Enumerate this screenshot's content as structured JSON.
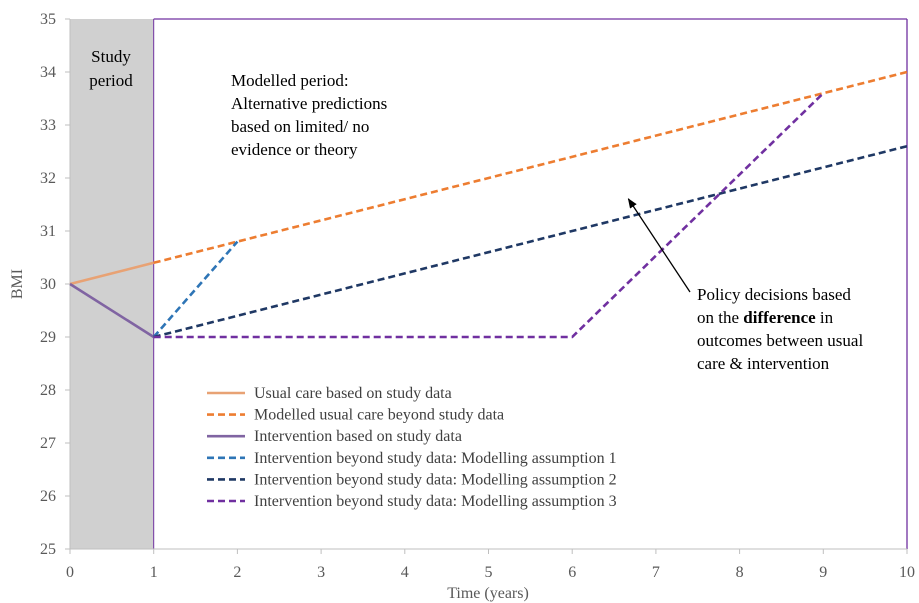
{
  "chart_data": {
    "type": "line",
    "xlabel": "Time (years)",
    "ylabel": "BMI",
    "xlim": [
      0,
      10
    ],
    "ylim": [
      25,
      35
    ],
    "x_ticks": [
      "0",
      "1",
      "2",
      "3",
      "4",
      "5",
      "6",
      "7",
      "8",
      "9",
      "10"
    ],
    "y_ticks": [
      "25",
      "26",
      "27",
      "28",
      "29",
      "30",
      "31",
      "32",
      "33",
      "34",
      "35"
    ],
    "grid": false,
    "study_period": {
      "x_range": [
        0,
        1
      ],
      "label_line1": "Study",
      "label_line2": "period"
    },
    "modelled_label": [
      "Modelled period:",
      "Alternative predictions",
      "based on limited/ no",
      "evidence or theory"
    ],
    "policy_note": {
      "line1": "Policy decisions based",
      "line2_pre": "on the ",
      "line2_bold": "difference",
      "line2_post": " in",
      "line3": "outcomes between usual",
      "line4": "care & intervention",
      "arrow_target": [
        6.6,
        31.7
      ]
    },
    "legend_position": "bottom-left",
    "series": [
      {
        "name": "Usual care based on study data",
        "color": "#e8a274",
        "dashed": false,
        "points": [
          [
            0,
            30
          ],
          [
            1,
            30.4
          ]
        ]
      },
      {
        "name": "Modelled usual care beyond study data",
        "color": "#ed7d31",
        "dashed": true,
        "points": [
          [
            1,
            30.4
          ],
          [
            10,
            34
          ]
        ]
      },
      {
        "name": "Intervention based on study data",
        "color": "#8064a2",
        "dashed": false,
        "points": [
          [
            0,
            30
          ],
          [
            1,
            29
          ]
        ]
      },
      {
        "name": "Intervention beyond study data: Modelling assumption 1",
        "color": "#2e75b6",
        "dashed": true,
        "points": [
          [
            1,
            29
          ],
          [
            2,
            30.8
          ]
        ]
      },
      {
        "name": "Intervention beyond study data: Modelling assumption 2",
        "color": "#1f3864",
        "dashed": true,
        "points": [
          [
            1,
            29
          ],
          [
            10,
            32.6
          ]
        ]
      },
      {
        "name": "Intervention beyond study data: Modelling assumption 3",
        "color": "#7030a0",
        "dashed": true,
        "points": [
          [
            1,
            29
          ],
          [
            6,
            29
          ],
          [
            9,
            33.6
          ]
        ]
      }
    ]
  },
  "colors": {
    "axis_line": "#bfbfbf",
    "plot_border": "#7030a0",
    "study_shade": "#d0d0d0",
    "arrow": "#000000"
  }
}
